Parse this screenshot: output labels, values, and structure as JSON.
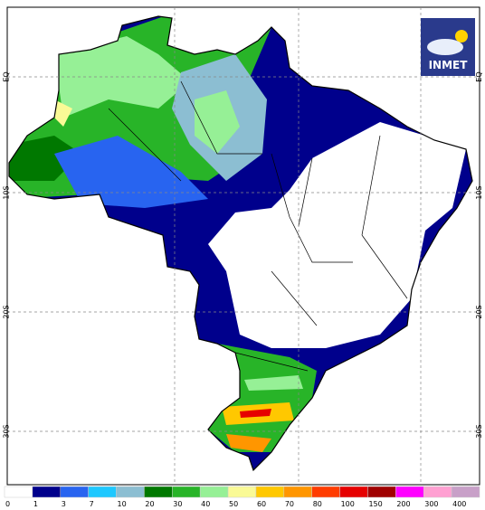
{
  "logo": "INMET",
  "latitude_labels": [
    "EQ",
    "10S",
    "20S",
    "30S"
  ],
  "legend": {
    "labels": [
      0,
      1,
      3,
      7,
      10,
      20,
      30,
      40,
      50,
      60,
      70,
      80,
      100,
      150,
      200,
      300,
      400
    ],
    "colors": [
      "#ffffff",
      "#00008c",
      "#2864f0",
      "#1ec8ff",
      "#8cbed2",
      "#007800",
      "#28b428",
      "#96f096",
      "#fafa96",
      "#ffc800",
      "#ff9600",
      "#ff3c00",
      "#e60000",
      "#a00000",
      "#ff00ff",
      "#ffa0d2",
      "#c8a0c8"
    ]
  }
}
